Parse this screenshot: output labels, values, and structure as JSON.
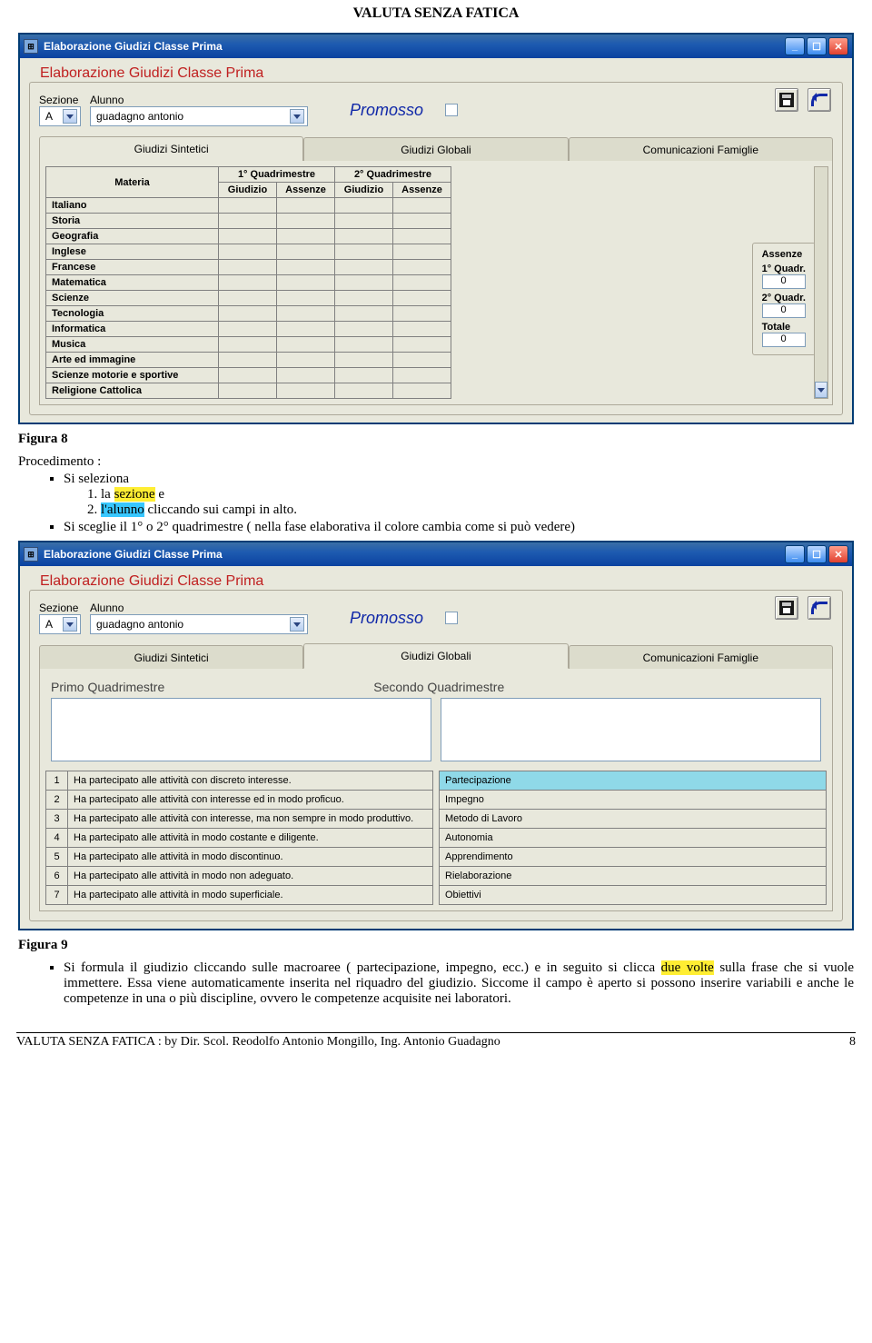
{
  "doc_header": "VALUTA SENZA FATICA",
  "window1": {
    "title": "Elaborazione Giudizi Classe Prima",
    "legend": "Elaborazione Giudizi Classe Prima",
    "sezione_label": "Sezione",
    "alunno_label": "Alunno",
    "sezione_value": "A",
    "alunno_value": "guadagno antonio",
    "promosso_label": "Promosso",
    "tabs": [
      "Giudizi Sintetici",
      "Giudizi Globali",
      "Comunicazioni Famiglie"
    ],
    "active_tab": 0,
    "materie_header": {
      "materia": "Materia",
      "q1": "1° Quadrimestre",
      "q2": "2° Quadrimestre",
      "giudizio": "Giudizio",
      "assenze": "Assenze"
    },
    "subjects": [
      "Italiano",
      "Storia",
      "Geografia",
      "Inglese",
      "Francese",
      "Matematica",
      "Scienze",
      "Tecnologia",
      "Informatica",
      "Musica",
      "Arte ed immagine",
      "Scienze motorie e sportive",
      "Religione Cattolica"
    ],
    "assenze": {
      "title": "Assenze",
      "q1_label": "1° Quadr.",
      "q1": "0",
      "q2_label": "2° Quadr.",
      "q2": "0",
      "tot_label": "Totale",
      "tot": "0"
    }
  },
  "figure8_caption": "Figura 8",
  "procedimento_label": "Procedimento :",
  "proc1_prefix": "Si seleziona",
  "proc1a_num": "1.",
  "proc1a_pre": "la ",
  "proc1a_hl": "sezione",
  "proc1a_post": " e",
  "proc1b_num": "2.",
  "proc1b_hl": "l'alunno",
  "proc1b_post": " cliccando sui campi in alto.",
  "proc2": "Si sceglie il 1° o 2° quadrimestre ( nella fase elaborativa il colore cambia come si può vedere)",
  "window2": {
    "title": "Elaborazione Giudizi Classe Prima",
    "legend": "Elaborazione Giudizi Classe Prima",
    "sezione_value": "A",
    "alunno_value": "guadagno antonio",
    "promosso_label": "Promosso",
    "tabs": [
      "Giudizi Sintetici",
      "Giudizi Globali",
      "Comunicazioni Famiglie"
    ],
    "active_tab": 1,
    "quad1_label": "Primo Quadrimestre",
    "quad2_label": "Secondo Quadrimestre",
    "phrases": [
      "Ha partecipato alle attività con discreto interesse.",
      "Ha partecipato alle attività con interesse ed in modo proficuo.",
      "Ha partecipato alle attività con interesse, ma non sempre in modo produttivo.",
      "Ha partecipato alle attività in modo costante e diligente.",
      "Ha partecipato alle attività in modo discontinuo.",
      "Ha partecipato alle attività in modo non adeguato.",
      "Ha partecipato alle attività in modo superficiale."
    ],
    "categories": [
      "Partecipazione",
      "Impegno",
      "Metodo di Lavoro",
      "Autonomia",
      "Apprendimento",
      "Rielaborazione",
      "Obiettivi"
    ],
    "selected_category": 0
  },
  "figure9_caption": "Figura 9",
  "par9_a": "Si formula il giudizio cliccando sulle macroaree ( partecipazione, impegno, ecc.) e in seguito si clicca ",
  "par9_hl": "due volte",
  "par9_b": " sulla frase che si vuole immettere. Essa viene automaticamente inserita nel riquadro del giudizio. Siccome il campo è aperto si possono inserire variabili e anche le competenze in una o più discipline, ovvero le competenze acquisite nei laboratori.",
  "footer_left": "VALUTA SENZA FATICA : by Dir. Scol. Reodolfo Antonio Mongillo, Ing. Antonio Guadagno",
  "footer_page": "8"
}
